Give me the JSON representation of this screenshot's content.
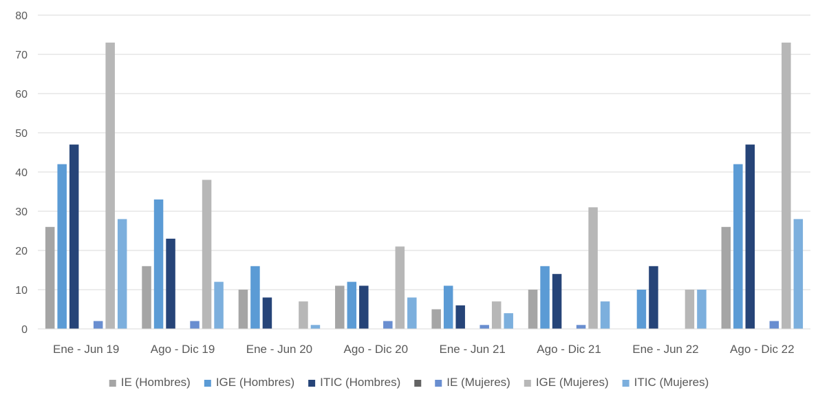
{
  "chart_data": {
    "type": "bar",
    "title": "",
    "xlabel": "",
    "ylabel": "",
    "ylim": [
      0,
      80
    ],
    "yticks": [
      0,
      10,
      20,
      30,
      40,
      50,
      60,
      70,
      80
    ],
    "grid": true,
    "legend_position": "bottom",
    "categories": [
      "Ene - Jun 19",
      "Ago - Dic 19",
      "Ene - Jun 20",
      "Ago - Dic 20",
      "Ene - Jun 21",
      "Ago - Dic 21",
      "Ene - Jun 22",
      "Ago - Dic 22"
    ],
    "series": [
      {
        "name": "IE (Hombres)",
        "color": "#a5a5a5",
        "values": [
          26,
          16,
          10,
          11,
          5,
          10,
          0,
          26
        ]
      },
      {
        "name": "IGE (Hombres)",
        "color": "#5b9bd5",
        "values": [
          42,
          33,
          16,
          12,
          11,
          16,
          10,
          42
        ]
      },
      {
        "name": "ITIC (Hombres)",
        "color": "#264478",
        "values": [
          47,
          23,
          8,
          11,
          6,
          14,
          16,
          47
        ]
      },
      {
        "name": "",
        "color": "#636363",
        "values": [
          0,
          0,
          0,
          0,
          0,
          0,
          0,
          0
        ]
      },
      {
        "name": "IE (Mujeres)",
        "color": "#698ed0",
        "values": [
          2,
          2,
          0,
          2,
          1,
          1,
          0,
          2
        ]
      },
      {
        "name": "IGE (Mujeres)",
        "color": "#b7b7b7",
        "values": [
          73,
          38,
          7,
          21,
          7,
          31,
          10,
          73
        ]
      },
      {
        "name": "ITIC (Mujeres)",
        "color": "#7cafdd",
        "values": [
          28,
          12,
          1,
          8,
          4,
          7,
          10,
          28
        ]
      }
    ]
  }
}
